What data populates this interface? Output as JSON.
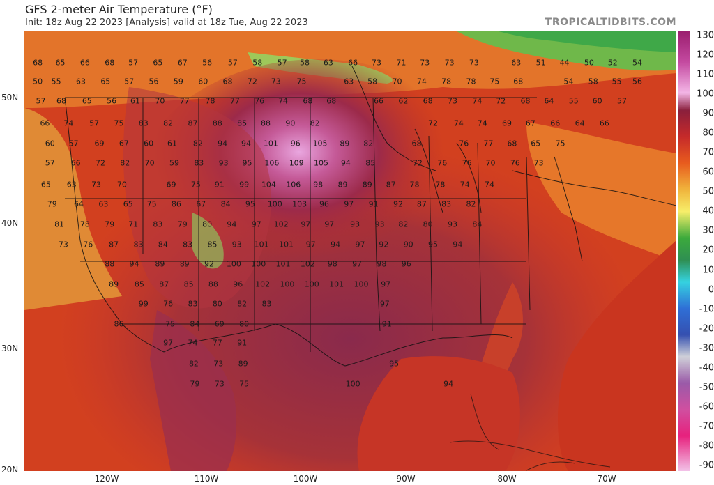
{
  "header": {
    "title": "GFS 2-meter Air Temperature (°F)",
    "subtitle": "Init: 18z Aug 22 2023   [Analysis]   valid at 18z Tue, Aug 22 2023",
    "brand": "TROPICALTIDBITS.COM"
  },
  "axes": {
    "lat_labels": [
      "50N",
      "40N",
      "30N",
      "20N"
    ],
    "lon_labels": [
      "120W",
      "110W",
      "100W",
      "90W",
      "80W",
      "70W"
    ]
  },
  "colorbar": {
    "ticks": [
      "130",
      "120",
      "110",
      "100",
      "90",
      "80",
      "70",
      "60",
      "50",
      "40",
      "30",
      "20",
      "10",
      "0",
      "-10",
      "-20",
      "-30",
      "-40",
      "-50",
      "-60",
      "-70",
      "-80",
      "-90"
    ]
  },
  "station_values": [
    {
      "v": "68",
      "lon": -127,
      "lat": 52.8
    },
    {
      "v": "65",
      "lon": -124.8,
      "lat": 52.8
    },
    {
      "v": "66",
      "lon": -122.4,
      "lat": 52.8
    },
    {
      "v": "68",
      "lon": -120.0,
      "lat": 52.8
    },
    {
      "v": "57",
      "lon": -117.7,
      "lat": 52.8
    },
    {
      "v": "65",
      "lon": -115.3,
      "lat": 52.8
    },
    {
      "v": "67",
      "lon": -112.9,
      "lat": 52.8
    },
    {
      "v": "56",
      "lon": -110.5,
      "lat": 52.8
    },
    {
      "v": "57",
      "lon": -108.0,
      "lat": 52.8
    },
    {
      "v": "58",
      "lon": -105.6,
      "lat": 52.8
    },
    {
      "v": "57",
      "lon": -103.2,
      "lat": 52.8
    },
    {
      "v": "58",
      "lon": -101.0,
      "lat": 52.8
    },
    {
      "v": "63",
      "lon": -98.7,
      "lat": 52.8
    },
    {
      "v": "66",
      "lon": -96.3,
      "lat": 52.8
    },
    {
      "v": "73",
      "lon": -94.0,
      "lat": 52.8
    },
    {
      "v": "71",
      "lon": -91.6,
      "lat": 52.8
    },
    {
      "v": "73",
      "lon": -89.3,
      "lat": 52.8
    },
    {
      "v": "73",
      "lon": -86.9,
      "lat": 52.8
    },
    {
      "v": "73",
      "lon": -84.5,
      "lat": 52.8
    },
    {
      "v": "63",
      "lon": -80.4,
      "lat": 52.8
    },
    {
      "v": "51",
      "lon": -78.0,
      "lat": 52.8
    },
    {
      "v": "44",
      "lon": -75.7,
      "lat": 52.8
    },
    {
      "v": "50",
      "lon": -73.3,
      "lat": 52.8
    },
    {
      "v": "52",
      "lon": -71.0,
      "lat": 52.8
    },
    {
      "v": "54",
      "lon": -68.6,
      "lat": 52.8
    },
    {
      "v": "50",
      "lon": -127,
      "lat": 51.3
    },
    {
      "v": "55",
      "lon": -125.2,
      "lat": 51.3
    },
    {
      "v": "63",
      "lon": -122.8,
      "lat": 51.3
    },
    {
      "v": "65",
      "lon": -120.4,
      "lat": 51.3
    },
    {
      "v": "57",
      "lon": -118.1,
      "lat": 51.3
    },
    {
      "v": "56",
      "lon": -115.7,
      "lat": 51.3
    },
    {
      "v": "59",
      "lon": -113.3,
      "lat": 51.3
    },
    {
      "v": "60",
      "lon": -110.9,
      "lat": 51.3
    },
    {
      "v": "68",
      "lon": -108.5,
      "lat": 51.3
    },
    {
      "v": "72",
      "lon": -106.1,
      "lat": 51.3
    },
    {
      "v": "73",
      "lon": -103.8,
      "lat": 51.3
    },
    {
      "v": "75",
      "lon": -101.3,
      "lat": 51.3
    },
    {
      "v": "63",
      "lon": -96.7,
      "lat": 51.3
    },
    {
      "v": "58",
      "lon": -94.4,
      "lat": 51.3
    },
    {
      "v": "70",
      "lon": -92.0,
      "lat": 51.3
    },
    {
      "v": "74",
      "lon": -89.6,
      "lat": 51.3
    },
    {
      "v": "78",
      "lon": -87.2,
      "lat": 51.3
    },
    {
      "v": "78",
      "lon": -84.8,
      "lat": 51.3
    },
    {
      "v": "75",
      "lon": -82.5,
      "lat": 51.3
    },
    {
      "v": "68",
      "lon": -80.2,
      "lat": 51.3
    },
    {
      "v": "54",
      "lon": -75.3,
      "lat": 51.3
    },
    {
      "v": "58",
      "lon": -72.9,
      "lat": 51.3
    },
    {
      "v": "55",
      "lon": -70.6,
      "lat": 51.3
    },
    {
      "v": "56",
      "lon": -68.6,
      "lat": 51.3
    },
    {
      "v": "57",
      "lon": -126.7,
      "lat": 49.7
    },
    {
      "v": "68",
      "lon": -124.7,
      "lat": 49.7
    },
    {
      "v": "65",
      "lon": -122.2,
      "lat": 49.7
    },
    {
      "v": "56",
      "lon": -119.8,
      "lat": 49.7
    },
    {
      "v": "61",
      "lon": -117.5,
      "lat": 49.7
    },
    {
      "v": "70",
      "lon": -115.1,
      "lat": 49.7
    },
    {
      "v": "77",
      "lon": -112.7,
      "lat": 49.7
    },
    {
      "v": "78",
      "lon": -110.2,
      "lat": 49.7
    },
    {
      "v": "77",
      "lon": -107.8,
      "lat": 49.7
    },
    {
      "v": "76",
      "lon": -105.4,
      "lat": 49.7
    },
    {
      "v": "74",
      "lon": -103.1,
      "lat": 49.7
    },
    {
      "v": "68",
      "lon": -100.7,
      "lat": 49.7
    },
    {
      "v": "68",
      "lon": -98.4,
      "lat": 49.7
    },
    {
      "v": "66",
      "lon": -93.8,
      "lat": 49.7
    },
    {
      "v": "62",
      "lon": -91.4,
      "lat": 49.7
    },
    {
      "v": "68",
      "lon": -89.0,
      "lat": 49.7
    },
    {
      "v": "73",
      "lon": -86.6,
      "lat": 49.7
    },
    {
      "v": "74",
      "lon": -84.2,
      "lat": 49.7
    },
    {
      "v": "72",
      "lon": -81.9,
      "lat": 49.7
    },
    {
      "v": "68",
      "lon": -79.5,
      "lat": 49.7
    },
    {
      "v": "64",
      "lon": -77.2,
      "lat": 49.7
    },
    {
      "v": "55",
      "lon": -74.8,
      "lat": 49.7
    },
    {
      "v": "60",
      "lon": -72.5,
      "lat": 49.7
    },
    {
      "v": "57",
      "lon": -70.1,
      "lat": 49.7
    },
    {
      "v": "66",
      "lon": -126.3,
      "lat": 47.9
    },
    {
      "v": "74",
      "lon": -124.0,
      "lat": 47.9
    },
    {
      "v": "57",
      "lon": -121.5,
      "lat": 47.9
    },
    {
      "v": "75",
      "lon": -119.1,
      "lat": 47.9
    },
    {
      "v": "83",
      "lon": -116.7,
      "lat": 47.9
    },
    {
      "v": "82",
      "lon": -114.3,
      "lat": 47.9
    },
    {
      "v": "87",
      "lon": -111.9,
      "lat": 47.9
    },
    {
      "v": "88",
      "lon": -109.5,
      "lat": 47.9
    },
    {
      "v": "85",
      "lon": -107.1,
      "lat": 47.9
    },
    {
      "v": "88",
      "lon": -104.8,
      "lat": 47.9
    },
    {
      "v": "90",
      "lon": -102.4,
      "lat": 47.9
    },
    {
      "v": "82",
      "lon": -100.0,
      "lat": 47.9
    },
    {
      "v": "72",
      "lon": -88.5,
      "lat": 47.9
    },
    {
      "v": "74",
      "lon": -86.0,
      "lat": 47.9
    },
    {
      "v": "74",
      "lon": -83.7,
      "lat": 47.9
    },
    {
      "v": "69",
      "lon": -81.3,
      "lat": 47.9
    },
    {
      "v": "67",
      "lon": -79.0,
      "lat": 47.9
    },
    {
      "v": "66",
      "lon": -76.6,
      "lat": 47.9
    },
    {
      "v": "64",
      "lon": -74.2,
      "lat": 47.9
    },
    {
      "v": "66",
      "lon": -71.8,
      "lat": 47.9
    },
    {
      "v": "60",
      "lon": -125.8,
      "lat": 46.3
    },
    {
      "v": "57",
      "lon": -123.5,
      "lat": 46.3
    },
    {
      "v": "69",
      "lon": -121.0,
      "lat": 46.3
    },
    {
      "v": "67",
      "lon": -118.6,
      "lat": 46.3
    },
    {
      "v": "60",
      "lon": -116.2,
      "lat": 46.3
    },
    {
      "v": "61",
      "lon": -113.9,
      "lat": 46.3
    },
    {
      "v": "82",
      "lon": -111.4,
      "lat": 46.3
    },
    {
      "v": "94",
      "lon": -109.0,
      "lat": 46.3
    },
    {
      "v": "94",
      "lon": -106.7,
      "lat": 46.3
    },
    {
      "v": "101",
      "lon": -104.3,
      "lat": 46.3
    },
    {
      "v": "96",
      "lon": -101.9,
      "lat": 46.3
    },
    {
      "v": "105",
      "lon": -99.5,
      "lat": 46.3
    },
    {
      "v": "89",
      "lon": -97.1,
      "lat": 46.3
    },
    {
      "v": "82",
      "lon": -94.8,
      "lat": 46.3
    },
    {
      "v": "68",
      "lon": -90.1,
      "lat": 46.3
    },
    {
      "v": "76",
      "lon": -85.5,
      "lat": 46.3
    },
    {
      "v": "77",
      "lon": -83.1,
      "lat": 46.3
    },
    {
      "v": "68",
      "lon": -80.8,
      "lat": 46.3
    },
    {
      "v": "65",
      "lon": -78.5,
      "lat": 46.3
    },
    {
      "v": "75",
      "lon": -76.1,
      "lat": 46.3
    },
    {
      "v": "57",
      "lon": -125.8,
      "lat": 44.7
    },
    {
      "v": "66",
      "lon": -123.3,
      "lat": 44.7
    },
    {
      "v": "72",
      "lon": -120.9,
      "lat": 44.7
    },
    {
      "v": "82",
      "lon": -118.5,
      "lat": 44.7
    },
    {
      "v": "70",
      "lon": -116.1,
      "lat": 44.7
    },
    {
      "v": "59",
      "lon": -113.7,
      "lat": 44.7
    },
    {
      "v": "83",
      "lon": -111.3,
      "lat": 44.7
    },
    {
      "v": "93",
      "lon": -108.9,
      "lat": 44.7
    },
    {
      "v": "95",
      "lon": -106.6,
      "lat": 44.7
    },
    {
      "v": "106",
      "lon": -104.2,
      "lat": 44.7
    },
    {
      "v": "109",
      "lon": -101.8,
      "lat": 44.7
    },
    {
      "v": "105",
      "lon": -99.4,
      "lat": 44.7
    },
    {
      "v": "94",
      "lon": -97.0,
      "lat": 44.7
    },
    {
      "v": "85",
      "lon": -94.6,
      "lat": 44.7
    },
    {
      "v": "72",
      "lon": -90.0,
      "lat": 44.7
    },
    {
      "v": "76",
      "lon": -87.6,
      "lat": 44.7
    },
    {
      "v": "76",
      "lon": -85.2,
      "lat": 44.7
    },
    {
      "v": "70",
      "lon": -82.9,
      "lat": 44.7
    },
    {
      "v": "76",
      "lon": -80.5,
      "lat": 44.7
    },
    {
      "v": "73",
      "lon": -78.2,
      "lat": 44.7
    },
    {
      "v": "65",
      "lon": -126.2,
      "lat": 43.0
    },
    {
      "v": "63",
      "lon": -123.7,
      "lat": 43.0
    },
    {
      "v": "73",
      "lon": -121.3,
      "lat": 43.0
    },
    {
      "v": "70",
      "lon": -118.8,
      "lat": 43.0
    },
    {
      "v": "69",
      "lon": -114.0,
      "lat": 43.0
    },
    {
      "v": "75",
      "lon": -111.6,
      "lat": 43.0
    },
    {
      "v": "91",
      "lon": -109.3,
      "lat": 43.0
    },
    {
      "v": "99",
      "lon": -106.9,
      "lat": 43.0
    },
    {
      "v": "104",
      "lon": -104.5,
      "lat": 43.0
    },
    {
      "v": "106",
      "lon": -102.1,
      "lat": 43.0
    },
    {
      "v": "98",
      "lon": -99.7,
      "lat": 43.0
    },
    {
      "v": "89",
      "lon": -97.3,
      "lat": 43.0
    },
    {
      "v": "89",
      "lon": -94.9,
      "lat": 43.0
    },
    {
      "v": "87",
      "lon": -92.6,
      "lat": 43.0
    },
    {
      "v": "78",
      "lon": -90.3,
      "lat": 43.0
    },
    {
      "v": "78",
      "lon": -87.8,
      "lat": 43.0
    },
    {
      "v": "74",
      "lon": -85.4,
      "lat": 43.0
    },
    {
      "v": "74",
      "lon": -83.0,
      "lat": 43.0
    },
    {
      "v": "79",
      "lon": -125.6,
      "lat": 41.4
    },
    {
      "v": "64",
      "lon": -123.0,
      "lat": 41.4
    },
    {
      "v": "63",
      "lon": -120.6,
      "lat": 41.4
    },
    {
      "v": "65",
      "lon": -118.2,
      "lat": 41.4
    },
    {
      "v": "75",
      "lon": -115.9,
      "lat": 41.4
    },
    {
      "v": "86",
      "lon": -113.5,
      "lat": 41.4
    },
    {
      "v": "67",
      "lon": -111.1,
      "lat": 41.4
    },
    {
      "v": "84",
      "lon": -108.7,
      "lat": 41.4
    },
    {
      "v": "95",
      "lon": -106.3,
      "lat": 41.4
    },
    {
      "v": "100",
      "lon": -103.9,
      "lat": 41.4
    },
    {
      "v": "103",
      "lon": -101.5,
      "lat": 41.4
    },
    {
      "v": "96",
      "lon": -99.1,
      "lat": 41.4
    },
    {
      "v": "97",
      "lon": -96.7,
      "lat": 41.4
    },
    {
      "v": "91",
      "lon": -94.3,
      "lat": 41.4
    },
    {
      "v": "92",
      "lon": -91.9,
      "lat": 41.4
    },
    {
      "v": "87",
      "lon": -89.6,
      "lat": 41.4
    },
    {
      "v": "83",
      "lon": -87.2,
      "lat": 41.4
    },
    {
      "v": "82",
      "lon": -84.8,
      "lat": 41.4
    },
    {
      "v": "81",
      "lon": -124.9,
      "lat": 39.8
    },
    {
      "v": "78",
      "lon": -122.4,
      "lat": 39.8
    },
    {
      "v": "79",
      "lon": -120.0,
      "lat": 39.8
    },
    {
      "v": "71",
      "lon": -117.7,
      "lat": 39.8
    },
    {
      "v": "83",
      "lon": -115.3,
      "lat": 39.8
    },
    {
      "v": "79",
      "lon": -112.9,
      "lat": 39.8
    },
    {
      "v": "80",
      "lon": -110.5,
      "lat": 39.8
    },
    {
      "v": "94",
      "lon": -108.1,
      "lat": 39.8
    },
    {
      "v": "97",
      "lon": -105.7,
      "lat": 39.8
    },
    {
      "v": "102",
      "lon": -103.3,
      "lat": 39.8
    },
    {
      "v": "97",
      "lon": -100.9,
      "lat": 39.8
    },
    {
      "v": "97",
      "lon": -98.6,
      "lat": 39.8
    },
    {
      "v": "93",
      "lon": -96.1,
      "lat": 39.8
    },
    {
      "v": "93",
      "lon": -93.7,
      "lat": 39.8
    },
    {
      "v": "82",
      "lon": -91.4,
      "lat": 39.8
    },
    {
      "v": "80",
      "lon": -89.0,
      "lat": 39.8
    },
    {
      "v": "93",
      "lon": -86.6,
      "lat": 39.8
    },
    {
      "v": "84",
      "lon": -84.2,
      "lat": 39.8
    },
    {
      "v": "73",
      "lon": -124.5,
      "lat": 38.2
    },
    {
      "v": "76",
      "lon": -122.1,
      "lat": 38.2
    },
    {
      "v": "87",
      "lon": -119.6,
      "lat": 38.2
    },
    {
      "v": "83",
      "lon": -117.2,
      "lat": 38.2
    },
    {
      "v": "84",
      "lon": -114.8,
      "lat": 38.2
    },
    {
      "v": "83",
      "lon": -112.4,
      "lat": 38.2
    },
    {
      "v": "85",
      "lon": -110.0,
      "lat": 38.2
    },
    {
      "v": "93",
      "lon": -107.6,
      "lat": 38.2
    },
    {
      "v": "101",
      "lon": -105.2,
      "lat": 38.2
    },
    {
      "v": "101",
      "lon": -102.8,
      "lat": 38.2
    },
    {
      "v": "97",
      "lon": -100.4,
      "lat": 38.2
    },
    {
      "v": "94",
      "lon": -98.0,
      "lat": 38.2
    },
    {
      "v": "97",
      "lon": -95.6,
      "lat": 38.2
    },
    {
      "v": "92",
      "lon": -93.3,
      "lat": 38.2
    },
    {
      "v": "90",
      "lon": -90.9,
      "lat": 38.2
    },
    {
      "v": "95",
      "lon": -88.5,
      "lat": 38.2
    },
    {
      "v": "94",
      "lon": -86.1,
      "lat": 38.2
    },
    {
      "v": "88",
      "lon": -120.0,
      "lat": 36.6
    },
    {
      "v": "94",
      "lon": -117.6,
      "lat": 36.6
    },
    {
      "v": "89",
      "lon": -115.1,
      "lat": 36.6
    },
    {
      "v": "89",
      "lon": -112.7,
      "lat": 36.6
    },
    {
      "v": "92",
      "lon": -110.3,
      "lat": 36.6
    },
    {
      "v": "100",
      "lon": -107.9,
      "lat": 36.6
    },
    {
      "v": "100",
      "lon": -105.5,
      "lat": 36.6
    },
    {
      "v": "101",
      "lon": -103.1,
      "lat": 36.6
    },
    {
      "v": "102",
      "lon": -100.7,
      "lat": 36.6
    },
    {
      "v": "98",
      "lon": -98.3,
      "lat": 36.6
    },
    {
      "v": "97",
      "lon": -95.9,
      "lat": 36.6
    },
    {
      "v": "98",
      "lon": -93.5,
      "lat": 36.6
    },
    {
      "v": "96",
      "lon": -91.1,
      "lat": 36.6
    },
    {
      "v": "89",
      "lon": -119.6,
      "lat": 35.0
    },
    {
      "v": "85",
      "lon": -117.1,
      "lat": 35.0
    },
    {
      "v": "87",
      "lon": -114.7,
      "lat": 35.0
    },
    {
      "v": "85",
      "lon": -112.3,
      "lat": 35.0
    },
    {
      "v": "88",
      "lon": -109.9,
      "lat": 35.0
    },
    {
      "v": "96",
      "lon": -107.5,
      "lat": 35.0
    },
    {
      "v": "102",
      "lon": -105.1,
      "lat": 35.0
    },
    {
      "v": "100",
      "lon": -102.7,
      "lat": 35.0
    },
    {
      "v": "100",
      "lon": -100.3,
      "lat": 35.0
    },
    {
      "v": "101",
      "lon": -97.9,
      "lat": 35.0
    },
    {
      "v": "100",
      "lon": -95.5,
      "lat": 35.0
    },
    {
      "v": "97",
      "lon": -93.1,
      "lat": 35.0
    },
    {
      "v": "99",
      "lon": -116.7,
      "lat": 33.4
    },
    {
      "v": "76",
      "lon": -114.3,
      "lat": 33.4
    },
    {
      "v": "83",
      "lon": -111.9,
      "lat": 33.4
    },
    {
      "v": "80",
      "lon": -109.5,
      "lat": 33.4
    },
    {
      "v": "82",
      "lon": -107.1,
      "lat": 33.4
    },
    {
      "v": "83",
      "lon": -104.7,
      "lat": 33.4
    },
    {
      "v": "97",
      "lon": -93.2,
      "lat": 33.4
    },
    {
      "v": "86",
      "lon": -119.1,
      "lat": 31.8
    },
    {
      "v": "75",
      "lon": -114.1,
      "lat": 31.8
    },
    {
      "v": "84",
      "lon": -111.7,
      "lat": 31.8
    },
    {
      "v": "69",
      "lon": -109.3,
      "lat": 31.8
    },
    {
      "v": "80",
      "lon": -106.9,
      "lat": 31.8
    },
    {
      "v": "91",
      "lon": -93.0,
      "lat": 31.8
    },
    {
      "v": "97",
      "lon": -114.3,
      "lat": 30.3
    },
    {
      "v": "74",
      "lon": -111.9,
      "lat": 30.3
    },
    {
      "v": "77",
      "lon": -109.5,
      "lat": 30.3
    },
    {
      "v": "91",
      "lon": -107.1,
      "lat": 30.3
    },
    {
      "v": "82",
      "lon": -111.8,
      "lat": 28.6
    },
    {
      "v": "73",
      "lon": -109.4,
      "lat": 28.6
    },
    {
      "v": "89",
      "lon": -107.0,
      "lat": 28.6
    },
    {
      "v": "95",
      "lon": -92.3,
      "lat": 28.6
    },
    {
      "v": "79",
      "lon": -111.7,
      "lat": 27.0
    },
    {
      "v": "73",
      "lon": -109.3,
      "lat": 27.0
    },
    {
      "v": "75",
      "lon": -106.9,
      "lat": 27.0
    },
    {
      "v": "100",
      "lon": -96.3,
      "lat": 27.0
    },
    {
      "v": "94",
      "lon": -87.0,
      "lat": 27.0
    }
  ]
}
